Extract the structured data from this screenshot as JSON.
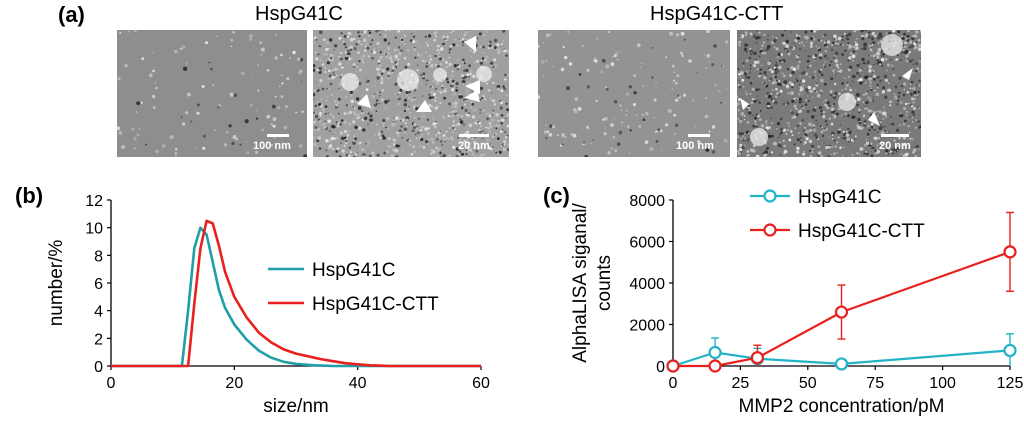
{
  "panel_a": {
    "label": "(a)",
    "groups": [
      {
        "title": "HspG41C",
        "images": [
          {
            "scale": "100 nm"
          },
          {
            "scale": "20 nm"
          }
        ]
      },
      {
        "title": "HspG41C-CTT",
        "images": [
          {
            "scale": "100 nm"
          },
          {
            "scale": "20 nm"
          }
        ]
      }
    ]
  },
  "panel_b": {
    "label": "(b)"
  },
  "panel_c": {
    "label": "(c)"
  },
  "chart_data": [
    {
      "panel": "(b)",
      "type": "line",
      "xlabel": "size/nm",
      "ylabel": "number/%",
      "xlim": [
        0,
        60
      ],
      "ylim": [
        0,
        12
      ],
      "xticks": [
        0,
        20,
        40,
        60
      ],
      "yticks": [
        0,
        2,
        4,
        6,
        8,
        10,
        12
      ],
      "grid": false,
      "legend_position": "right",
      "series": [
        {
          "name": "HspG41C",
          "color": "#1f9ea8",
          "x": [
            0,
            11.5,
            12.5,
            13.5,
            14.5,
            15.5,
            16.5,
            17.5,
            18.5,
            20,
            22,
            24,
            26,
            28,
            30,
            33,
            36,
            38,
            60
          ],
          "y": [
            0,
            0,
            4.0,
            8.5,
            10.0,
            9.5,
            7.5,
            5.5,
            4.2,
            3.0,
            1.9,
            1.1,
            0.6,
            0.3,
            0.15,
            0.05,
            0,
            0,
            0
          ]
        },
        {
          "name": "HspG41C-CTT",
          "color": "#e8201e",
          "x": [
            0,
            12.5,
            13.5,
            14.5,
            15.5,
            16.5,
            17.5,
            18.5,
            20,
            22,
            24,
            26,
            28,
            30,
            32,
            34,
            36,
            38,
            40,
            42,
            44,
            45,
            60
          ],
          "y": [
            0,
            0,
            4.5,
            8.5,
            10.5,
            10.3,
            8.7,
            6.8,
            5.0,
            3.5,
            2.4,
            1.7,
            1.2,
            0.9,
            0.7,
            0.5,
            0.35,
            0.2,
            0.12,
            0.05,
            0.02,
            0,
            0
          ]
        }
      ]
    },
    {
      "panel": "(c)",
      "type": "line",
      "xlabel": "MMP2 concentration/pM",
      "ylabel": "AlphaLISA siganal/\ncounts",
      "xlim": [
        0,
        125
      ],
      "ylim": [
        0,
        8000
      ],
      "xticks": [
        0,
        25,
        50,
        75,
        100,
        125
      ],
      "yticks": [
        0,
        2000,
        4000,
        6000,
        8000
      ],
      "grid": false,
      "legend_position": "top-left",
      "series": [
        {
          "name": "HspG41C",
          "color": "#22b3c6",
          "x": [
            0,
            15.6,
            31.3,
            62.5,
            125
          ],
          "y": [
            0,
            650,
            350,
            100,
            750
          ],
          "err": [
            0,
            700,
            500,
            80,
            800
          ]
        },
        {
          "name": "HspG41C-CTT",
          "color": "#e8201e",
          "x": [
            0,
            15.6,
            31.3,
            62.5,
            125
          ],
          "y": [
            0,
            0,
            400,
            2600,
            5500
          ],
          "err": [
            0,
            0,
            600,
            1300,
            1900
          ]
        }
      ]
    }
  ]
}
